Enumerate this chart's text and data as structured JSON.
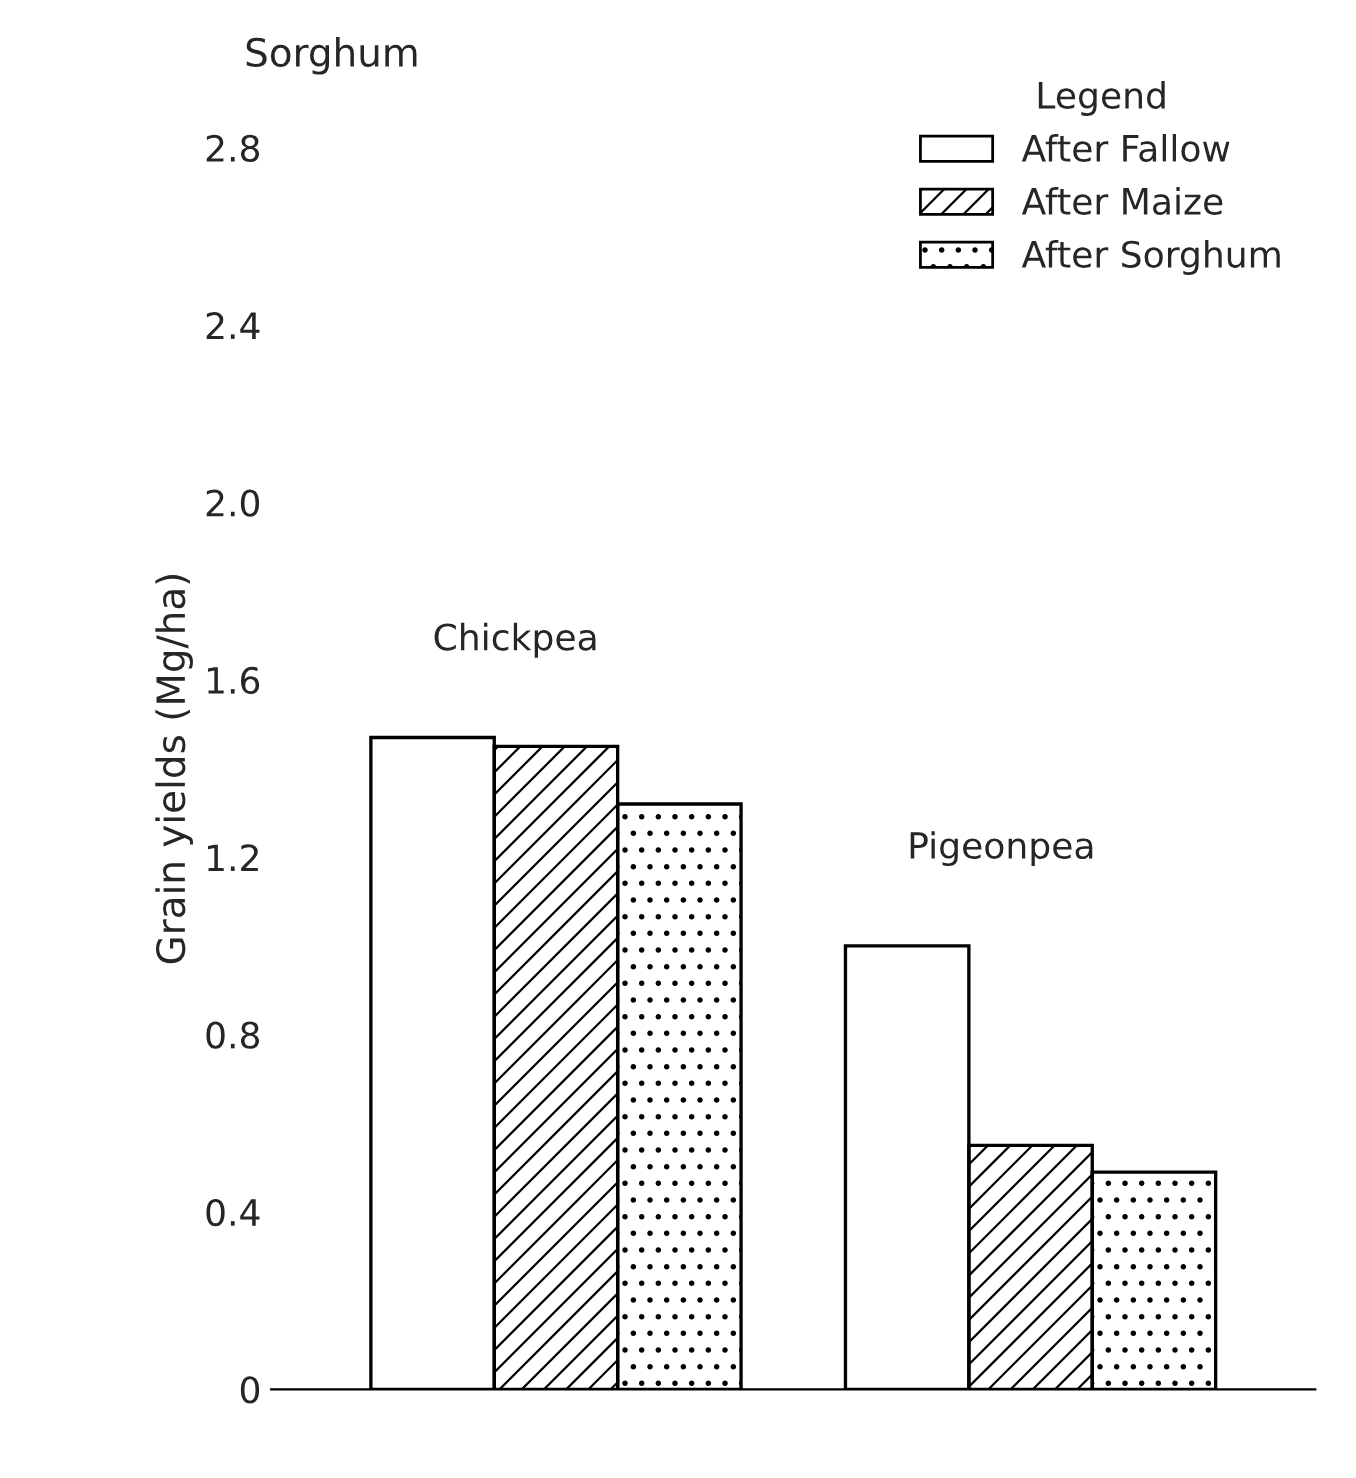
{
  "chart_data": {
    "type": "bar",
    "title": "Sorghum",
    "ylabel": "Grain yields (Mg/ha)",
    "legend_title": "Legend",
    "categories": [
      "Chickpea",
      "Pigeonpea"
    ],
    "series": [
      {
        "name": "After Fallow",
        "color": "#ffffff",
        "values": [
          1.47,
          1.0
        ]
      },
      {
        "name": "After Maize",
        "color": "#000000",
        "values": [
          1.45,
          0.55
        ]
      },
      {
        "name": "After Sorghum",
        "color": "#000000",
        "values": [
          1.32,
          0.49
        ]
      }
    ],
    "ylim": [
      0,
      2.8
    ],
    "yticks": [
      0,
      0.4,
      0.8,
      1.2,
      1.6,
      {
        "value": 2.0,
        "label": "2.0"
      },
      2.4,
      2.8
    ],
    "grid": false,
    "legend": "top right"
  }
}
